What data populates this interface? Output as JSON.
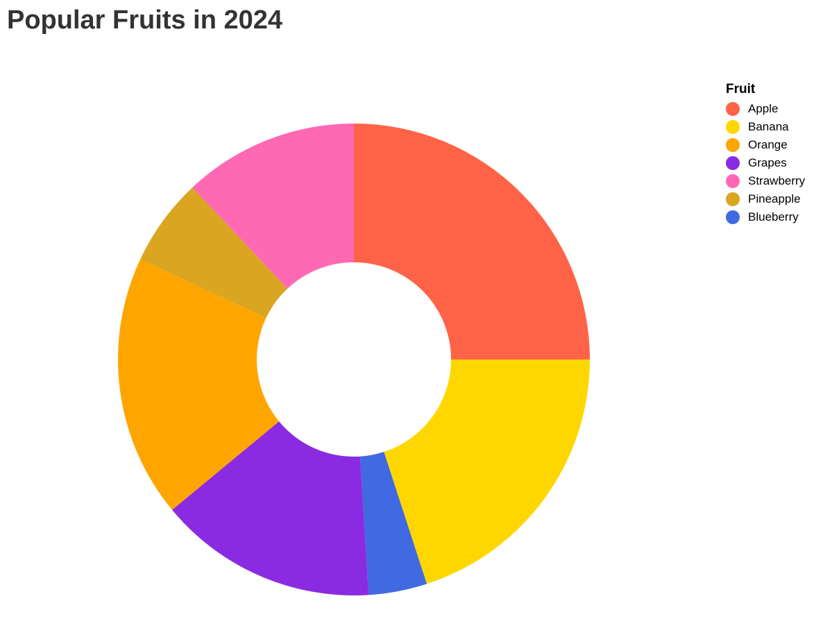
{
  "chart_data": {
    "type": "pie",
    "title": "Popular Fruits in 2024",
    "donut": true,
    "legend": {
      "title": "Fruit",
      "placement": "top-right"
    },
    "categories": [
      "Apple",
      "Banana",
      "Orange",
      "Grapes",
      "Strawberry",
      "Pineapple",
      "Blueberry"
    ],
    "slices_in_drawing_order": [
      {
        "label": "Apple",
        "value": 25,
        "color": "#FF6347"
      },
      {
        "label": "Banana",
        "value": 20,
        "color": "#FFD700"
      },
      {
        "label": "Blueberry",
        "value": 4,
        "color": "#4169E1"
      },
      {
        "label": "Grapes",
        "value": 15,
        "color": "#8A2BE2"
      },
      {
        "label": "Orange",
        "value": 18,
        "color": "#FFA500"
      },
      {
        "label": "Pineapple",
        "value": 6,
        "color": "#DAA520"
      },
      {
        "label": "Strawberry",
        "value": 12,
        "color": "#FF69B4"
      }
    ],
    "colors": {
      "Apple": "#FF6347",
      "Banana": "#FFD700",
      "Orange": "#FFA500",
      "Grapes": "#8A2BE2",
      "Strawberry": "#FF69B4",
      "Pineapple": "#DAA520",
      "Blueberry": "#4169E1"
    }
  }
}
